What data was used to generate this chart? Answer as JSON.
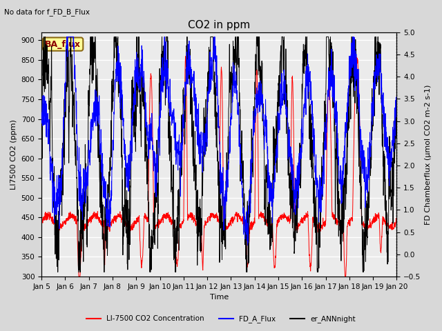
{
  "title": "CO2 in ppm",
  "top_left_text": "No data for f_FD_B_Flux",
  "legend_box_label": "BA_flux",
  "xlabel": "Time",
  "ylabel_left": "LI7500 CO2 (ppm)",
  "ylabel_right": "FD Chamberflux (μmol CO2 m-2 s-1)",
  "ylim_left": [
    300,
    920
  ],
  "ylim_right": [
    -0.5,
    5.0
  ],
  "yticks_left": [
    300,
    350,
    400,
    450,
    500,
    550,
    600,
    650,
    700,
    750,
    800,
    850,
    900
  ],
  "yticks_right": [
    -0.5,
    0.0,
    0.5,
    1.0,
    1.5,
    2.0,
    2.5,
    3.0,
    3.5,
    4.0,
    4.5,
    5.0
  ],
  "xtick_labels": [
    "Jan 5",
    "Jan 6",
    "Jan 7",
    "Jan 8",
    "Jan 9",
    "Jan 10",
    "Jan 11",
    "Jan 12",
    "Jan 13",
    "Jan 14",
    "Jan 15",
    "Jan 16",
    "Jan 17",
    "Jan 18",
    "Jan 19",
    "Jan 20"
  ],
  "n_points": 2000,
  "red_color": "#FF0000",
  "blue_color": "#0000FF",
  "black_color": "#000000",
  "legend_red": "LI-7500 CO2 Concentration",
  "legend_blue": "FD_A_Flux",
  "legend_black": "er_ANNnight",
  "bg_color": "#D8D8D8",
  "inner_bg_color": "#EBEBEB",
  "legend_box_color": "#FFFF99",
  "legend_box_edge_color": "#8B6914",
  "grid_color": "#FFFFFF",
  "title_fontsize": 11,
  "label_fontsize": 8,
  "tick_fontsize": 7.5
}
